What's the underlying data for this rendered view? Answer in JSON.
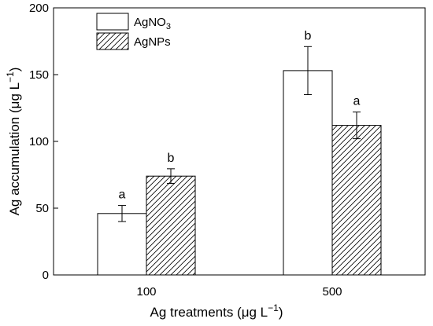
{
  "chart_data": {
    "type": "bar",
    "categories": [
      "100",
      "500"
    ],
    "series": [
      {
        "name": "AgNO3",
        "values": [
          46,
          153
        ],
        "errors": [
          6,
          18
        ],
        "labels": [
          "a",
          "b"
        ],
        "fill": "#ffffff",
        "pattern": "none"
      },
      {
        "name": "AgNPs",
        "values": [
          74,
          112
        ],
        "errors": [
          5.5,
          10
        ],
        "labels": [
          "b",
          "a"
        ],
        "fill": "#ffffff",
        "pattern": "hatch"
      }
    ],
    "legend": {
      "entries": [
        {
          "base": "AgNO",
          "sub": "3"
        },
        {
          "base": "AgNPs",
          "sub": ""
        }
      ],
      "placement": "top-left"
    },
    "xlabel": {
      "main": "Ag treatments (μg L",
      "sup": "−1",
      "tail": ")"
    },
    "ylabel": {
      "main": "Ag accumulation (μg L",
      "sup": "−1",
      "tail": ")"
    },
    "ylim": [
      0,
      200
    ],
    "yticks": [
      0,
      50,
      100,
      150,
      200
    ],
    "grid": false
  }
}
